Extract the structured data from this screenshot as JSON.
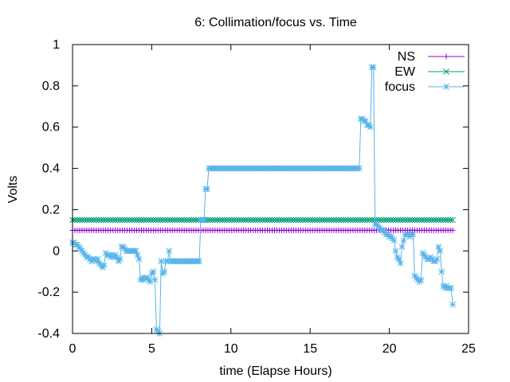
{
  "chart_data": {
    "type": "line",
    "title": "6: Collimation/focus vs. Time",
    "xlabel": "time (Elapse Hours)",
    "ylabel": "Volts",
    "xlim": [
      0,
      25
    ],
    "ylim": [
      -0.4,
      1.0
    ],
    "x_ticks": [
      "0",
      "5",
      "10",
      "15",
      "20",
      "25"
    ],
    "y_ticks": [
      "-0.4",
      "-0.2",
      "0",
      "0.2",
      "0.4",
      "0.6",
      "0.8",
      "1"
    ],
    "x_tick_values": [
      0,
      5,
      10,
      15,
      20,
      25
    ],
    "y_tick_values": [
      -0.4,
      -0.2,
      0,
      0.2,
      0.4,
      0.6,
      0.8,
      1.0
    ],
    "grid": false,
    "legend_position": "top-right",
    "series": [
      {
        "name": "NS",
        "color": "#9400d3",
        "marker": "plus",
        "points": [
          [
            0,
            0.1
          ],
          [
            24,
            0.1
          ]
        ],
        "marker_step": 0.15
      },
      {
        "name": "EW",
        "color": "#009e73",
        "marker": "cross",
        "points": [
          [
            0,
            0.15
          ],
          [
            24,
            0.15
          ]
        ],
        "marker_step": 0.15
      },
      {
        "name": "focus",
        "color": "#56b4e9",
        "marker": "star",
        "points": [
          [
            0,
            0.04
          ],
          [
            0.1,
            0.04
          ],
          [
            0.2,
            0.03
          ],
          [
            0.3,
            0.03
          ],
          [
            0.4,
            0.02
          ],
          [
            0.5,
            0.01
          ],
          [
            0.6,
            0.0
          ],
          [
            0.7,
            -0.01
          ],
          [
            0.8,
            -0.02
          ],
          [
            0.9,
            -0.03
          ],
          [
            1.0,
            -0.03
          ],
          [
            1.1,
            -0.04
          ],
          [
            1.2,
            -0.05
          ],
          [
            1.3,
            -0.04
          ],
          [
            1.4,
            -0.04
          ],
          [
            1.5,
            -0.05
          ],
          [
            1.6,
            -0.04
          ],
          [
            1.7,
            -0.06
          ],
          [
            1.8,
            -0.07
          ],
          [
            1.9,
            -0.08
          ],
          [
            2.0,
            -0.07
          ],
          [
            2.1,
            -0.01
          ],
          [
            2.2,
            -0.02
          ],
          [
            2.3,
            -0.02
          ],
          [
            2.4,
            -0.03
          ],
          [
            2.5,
            -0.02
          ],
          [
            2.6,
            -0.03
          ],
          [
            2.7,
            -0.02
          ],
          [
            2.8,
            -0.03
          ],
          [
            2.9,
            -0.05
          ],
          [
            3.0,
            -0.04
          ],
          [
            3.1,
            0.02
          ],
          [
            3.2,
            0.02
          ],
          [
            3.3,
            0.01
          ],
          [
            3.4,
            0.0
          ],
          [
            3.5,
            0.0
          ],
          [
            3.6,
            0.0
          ],
          [
            3.7,
            0.0
          ],
          [
            3.8,
            0.0
          ],
          [
            3.9,
            0.0
          ],
          [
            4.0,
            0.0
          ],
          [
            4.1,
            -0.02
          ],
          [
            4.2,
            -0.04
          ],
          [
            4.3,
            -0.14
          ],
          [
            4.4,
            -0.13
          ],
          [
            4.5,
            -0.14
          ],
          [
            4.6,
            -0.13
          ],
          [
            4.7,
            -0.13
          ],
          [
            4.8,
            -0.14
          ],
          [
            4.9,
            -0.15
          ],
          [
            5.0,
            -0.11
          ],
          [
            5.1,
            -0.1
          ],
          [
            5.2,
            -0.14
          ],
          [
            5.3,
            -0.38
          ],
          [
            5.4,
            -0.39
          ],
          [
            5.5,
            -0.4
          ],
          [
            5.6,
            -0.05
          ],
          [
            5.7,
            -0.11
          ],
          [
            5.8,
            -0.1
          ],
          [
            5.9,
            -0.05
          ],
          [
            6.0,
            -0.05
          ],
          [
            6.1,
            0.0
          ],
          [
            6.2,
            -0.05
          ],
          [
            6.5,
            -0.05
          ],
          [
            7.0,
            -0.05
          ],
          [
            7.5,
            -0.05
          ],
          [
            7.8,
            -0.05
          ],
          [
            8.0,
            -0.05
          ],
          [
            8.1,
            0.15
          ],
          [
            8.2,
            0.15
          ],
          [
            8.3,
            0.15
          ],
          [
            8.4,
            0.3
          ],
          [
            8.5,
            0.3
          ],
          [
            8.6,
            0.4
          ],
          [
            9.0,
            0.4
          ],
          [
            10.0,
            0.4
          ],
          [
            11.0,
            0.4
          ],
          [
            12.0,
            0.4
          ],
          [
            13.0,
            0.4
          ],
          [
            14.0,
            0.4
          ],
          [
            15.0,
            0.4
          ],
          [
            16.0,
            0.4
          ],
          [
            17.0,
            0.4
          ],
          [
            18.0,
            0.4
          ],
          [
            18.1,
            0.4
          ],
          [
            18.2,
            0.64
          ],
          [
            18.3,
            0.64
          ],
          [
            18.4,
            0.63
          ],
          [
            18.5,
            0.63
          ],
          [
            18.6,
            0.61
          ],
          [
            18.7,
            0.61
          ],
          [
            18.8,
            0.6
          ],
          [
            18.9,
            0.89
          ],
          [
            19.0,
            0.89
          ],
          [
            19.1,
            0.13
          ],
          [
            19.2,
            0.13
          ],
          [
            19.3,
            0.12
          ],
          [
            19.4,
            0.11
          ],
          [
            19.5,
            0.1
          ],
          [
            19.6,
            0.1
          ],
          [
            19.7,
            0.09
          ],
          [
            19.8,
            0.08
          ],
          [
            19.9,
            0.08
          ],
          [
            20.0,
            0.07
          ],
          [
            20.1,
            0.07
          ],
          [
            20.2,
            0.06
          ],
          [
            20.3,
            0.05
          ],
          [
            20.4,
            0.0
          ],
          [
            20.5,
            -0.03
          ],
          [
            20.6,
            -0.04
          ],
          [
            20.7,
            -0.06
          ],
          [
            20.8,
            0.02
          ],
          [
            20.9,
            0.05
          ],
          [
            21.0,
            0.08
          ],
          [
            21.1,
            0.08
          ],
          [
            21.2,
            0.08
          ],
          [
            21.3,
            0.07
          ],
          [
            21.4,
            0.08
          ],
          [
            21.5,
            0.08
          ],
          [
            21.6,
            -0.12
          ],
          [
            21.7,
            -0.13
          ],
          [
            21.8,
            -0.14
          ],
          [
            21.9,
            -0.15
          ],
          [
            22.0,
            -0.14
          ],
          [
            22.1,
            -0.01
          ],
          [
            22.2,
            -0.02
          ],
          [
            22.3,
            -0.03
          ],
          [
            22.4,
            -0.04
          ],
          [
            22.5,
            -0.04
          ],
          [
            22.6,
            -0.03
          ],
          [
            22.7,
            -0.04
          ],
          [
            22.8,
            -0.05
          ],
          [
            22.9,
            -0.05
          ],
          [
            23.0,
            -0.04
          ],
          [
            23.1,
            0.02
          ],
          [
            23.2,
            0.0
          ],
          [
            23.3,
            -0.1
          ],
          [
            23.4,
            -0.17
          ],
          [
            23.5,
            -0.18
          ],
          [
            23.6,
            -0.17
          ],
          [
            23.7,
            -0.18
          ],
          [
            23.8,
            -0.18
          ],
          [
            23.9,
            -0.18
          ],
          [
            24.0,
            -0.26
          ]
        ],
        "marker_step": 0.1
      }
    ]
  }
}
